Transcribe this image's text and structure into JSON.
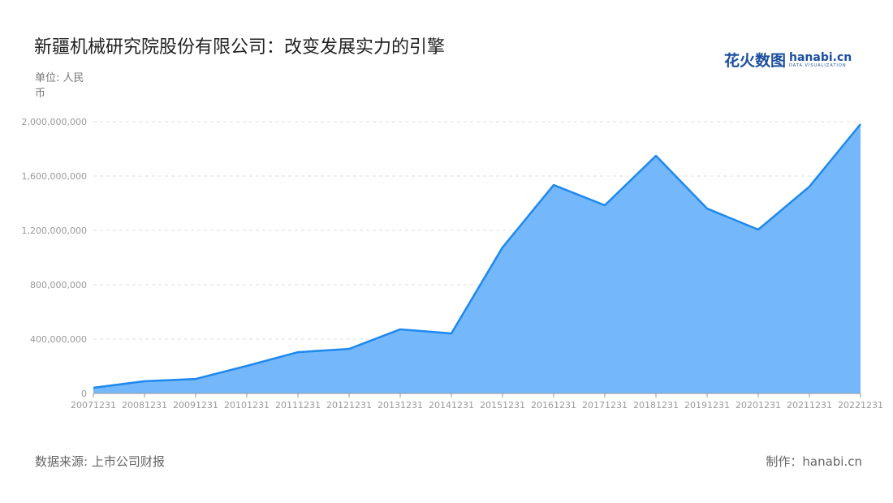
{
  "title": "新疆机械研究院股份有限公司：改变发展实力的引擎",
  "unit_label": "单位: 人民币",
  "source": "数据来源: 上市公司财报",
  "credit": "制作：hanabi.cn",
  "logo": {
    "cn": "花火数图",
    "en": "hanabi.cn",
    "sub": "DATA VISUALIZATION"
  },
  "colors": {
    "line": "#1e88f0",
    "fill": "#74b8fb",
    "grid": "#dddddd"
  },
  "chart_data": {
    "type": "area",
    "title": "新疆机械研究院股份有限公司：改变发展实力的引擎",
    "ylabel": "单位: 人民币",
    "ylim": [
      0,
      2000000000
    ],
    "yticks": [
      0,
      400000000,
      800000000,
      1200000000,
      1600000000,
      2000000000
    ],
    "ytick_labels": [
      "0",
      "400,000,000",
      "800,000,000",
      "1,200,000,000",
      "1,600,000,000",
      "2,000,000,000"
    ],
    "grid": true,
    "categories": [
      "20071231",
      "20081231",
      "20091231",
      "20101231",
      "20111231",
      "20121231",
      "20131231",
      "20141231",
      "20151231",
      "20161231",
      "20171231",
      "20181231",
      "20191231",
      "20201231",
      "20211231",
      "20221231"
    ],
    "values": [
      42000000,
      90000000,
      107000000,
      203000000,
      304000000,
      328000000,
      472000000,
      442000000,
      1075000000,
      1534000000,
      1385000000,
      1749000000,
      1361000000,
      1206000000,
      1522000000,
      1982000000
    ]
  }
}
